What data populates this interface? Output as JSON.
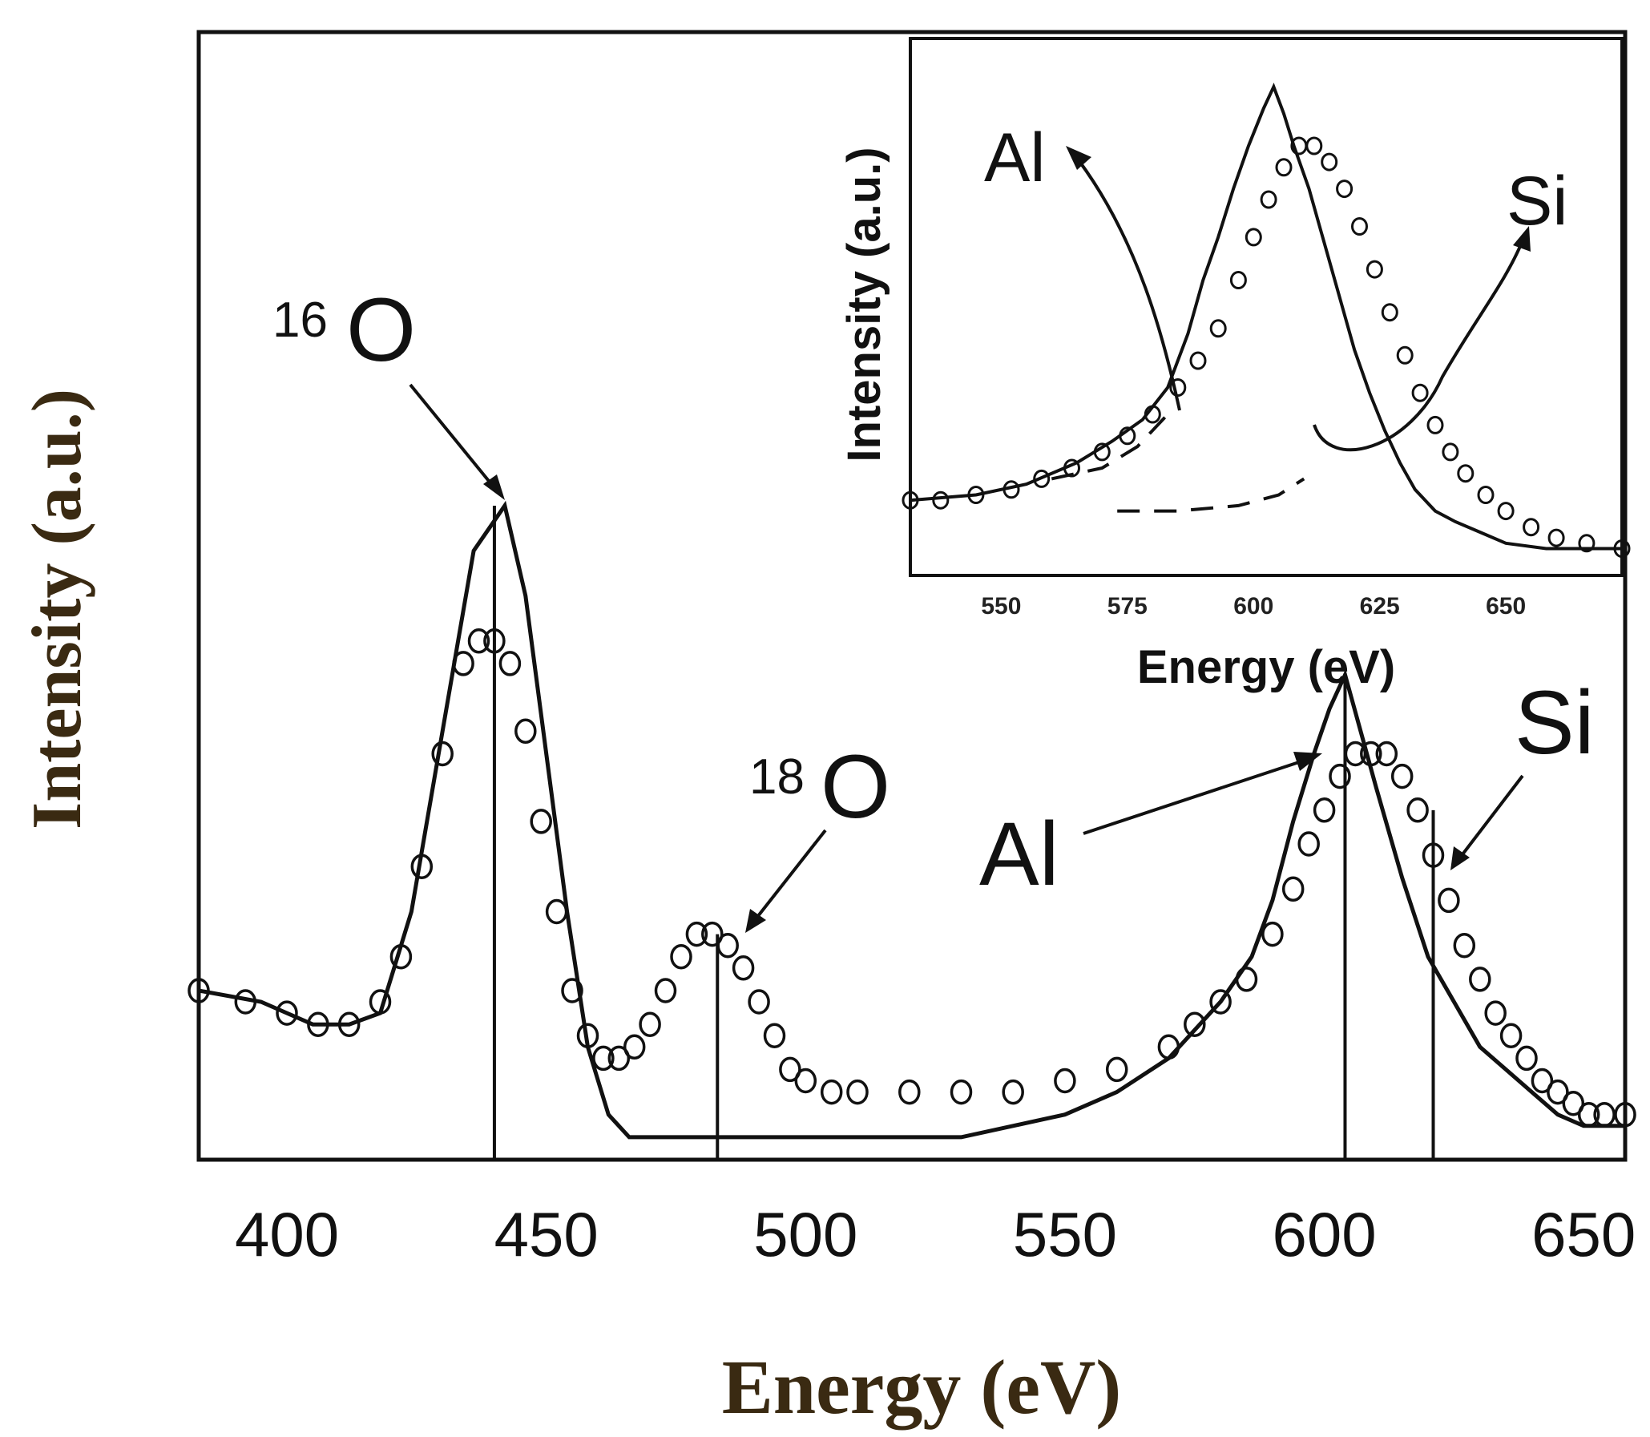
{
  "chart_data": [
    {
      "type": "line",
      "xlabel": "Energy (eV)",
      "ylabel": "Intensity (a.u.)",
      "xlim": [
        383,
        658
      ],
      "ylim": [
        0,
        1
      ],
      "x_ticks": [
        400,
        450,
        500,
        550,
        600,
        650
      ],
      "x_tick_labels": [
        "400",
        "450",
        "500",
        "550",
        "600",
        "650"
      ],
      "y_ticks_shown": false,
      "series": [
        {
          "name": "solid line",
          "style": "line",
          "x": [
            383,
            395,
            405,
            412,
            418,
            424,
            430,
            436,
            439,
            442,
            446,
            450,
            454,
            458,
            462,
            466,
            470,
            480,
            490,
            500,
            510,
            520,
            530,
            540,
            550,
            560,
            570,
            580,
            586,
            590,
            594,
            598,
            601,
            604,
            607,
            610,
            615,
            620,
            625,
            630,
            635,
            640,
            645,
            650,
            655,
            658
          ],
          "values": [
            0.15,
            0.14,
            0.12,
            0.12,
            0.13,
            0.22,
            0.38,
            0.54,
            0.56,
            0.58,
            0.5,
            0.36,
            0.22,
            0.1,
            0.04,
            0.02,
            0.02,
            0.02,
            0.02,
            0.02,
            0.02,
            0.02,
            0.02,
            0.03,
            0.04,
            0.06,
            0.09,
            0.14,
            0.18,
            0.23,
            0.3,
            0.36,
            0.4,
            0.43,
            0.38,
            0.33,
            0.25,
            0.18,
            0.14,
            0.1,
            0.08,
            0.06,
            0.04,
            0.03,
            0.03,
            0.03
          ]
        },
        {
          "name": "open circles",
          "style": "markers",
          "x": [
            383,
            392,
            400,
            406,
            412,
            418,
            422,
            426,
            430,
            434,
            437,
            440,
            443,
            446,
            449,
            452,
            455,
            458,
            461,
            464,
            467,
            470,
            473,
            476,
            479,
            482,
            485,
            488,
            491,
            494,
            497,
            500,
            505,
            510,
            520,
            530,
            540,
            550,
            560,
            570,
            575,
            580,
            585,
            590,
            594,
            597,
            600,
            603,
            606,
            609,
            612,
            615,
            618,
            621,
            624,
            627,
            630,
            633,
            636,
            639,
            642,
            645,
            648,
            651,
            654,
            658
          ],
          "values": [
            0.15,
            0.14,
            0.13,
            0.12,
            0.12,
            0.14,
            0.18,
            0.26,
            0.36,
            0.44,
            0.46,
            0.46,
            0.44,
            0.38,
            0.3,
            0.22,
            0.15,
            0.11,
            0.09,
            0.09,
            0.1,
            0.12,
            0.15,
            0.18,
            0.2,
            0.2,
            0.19,
            0.17,
            0.14,
            0.11,
            0.08,
            0.07,
            0.06,
            0.06,
            0.06,
            0.06,
            0.06,
            0.07,
            0.08,
            0.1,
            0.12,
            0.14,
            0.16,
            0.2,
            0.24,
            0.28,
            0.31,
            0.34,
            0.36,
            0.36,
            0.36,
            0.34,
            0.31,
            0.27,
            0.23,
            0.19,
            0.16,
            0.13,
            0.11,
            0.09,
            0.07,
            0.06,
            0.05,
            0.04,
            0.04,
            0.04
          ]
        }
      ],
      "markers": [
        {
          "label_mass": "16",
          "label_element": "O",
          "x": 440
        },
        {
          "label_mass": "18",
          "label_element": "O",
          "x": 483
        },
        {
          "label_mass": "",
          "label_element": "Al",
          "x": 604
        },
        {
          "label_mass": "",
          "label_element": "Si",
          "x": 621
        }
      ]
    },
    {
      "type": "line",
      "title": "inset",
      "xlabel": "Energy (eV)",
      "ylabel": "Intensity (a.u.)",
      "xlim": [
        532,
        673
      ],
      "ylim": [
        0,
        1
      ],
      "x_ticks": [
        550,
        575,
        600,
        625,
        650
      ],
      "x_tick_labels": [
        "550",
        "575",
        "600",
        "625",
        "650"
      ],
      "series": [
        {
          "name": "solid line",
          "style": "line",
          "x": [
            532,
            545,
            555,
            565,
            572,
            578,
            583,
            587,
            590,
            593,
            596,
            599,
            602,
            604,
            606,
            608,
            611,
            614,
            617,
            620,
            623,
            626,
            629,
            632,
            636,
            640,
            645,
            650,
            658,
            665,
            673
          ],
          "values": [
            0.14,
            0.15,
            0.17,
            0.21,
            0.25,
            0.29,
            0.35,
            0.45,
            0.55,
            0.63,
            0.72,
            0.8,
            0.87,
            0.91,
            0.86,
            0.8,
            0.72,
            0.62,
            0.52,
            0.42,
            0.34,
            0.27,
            0.21,
            0.16,
            0.12,
            0.1,
            0.08,
            0.06,
            0.05,
            0.05,
            0.05
          ]
        },
        {
          "name": "open circles",
          "style": "markers",
          "x": [
            532,
            538,
            545,
            552,
            558,
            564,
            570,
            575,
            580,
            585,
            589,
            593,
            597,
            600,
            603,
            606,
            609,
            612,
            615,
            618,
            621,
            624,
            627,
            630,
            633,
            636,
            639,
            642,
            646,
            650,
            655,
            660,
            666,
            673
          ],
          "values": [
            0.14,
            0.14,
            0.15,
            0.16,
            0.18,
            0.2,
            0.23,
            0.26,
            0.3,
            0.35,
            0.4,
            0.46,
            0.55,
            0.63,
            0.7,
            0.76,
            0.8,
            0.8,
            0.77,
            0.72,
            0.65,
            0.57,
            0.49,
            0.41,
            0.34,
            0.28,
            0.23,
            0.19,
            0.15,
            0.12,
            0.09,
            0.07,
            0.06,
            0.05
          ]
        },
        {
          "name": "Al component (dashed)",
          "style": "dashed",
          "x": [
            560,
            570,
            577,
            583
          ],
          "values": [
            0.18,
            0.2,
            0.24,
            0.3
          ]
        },
        {
          "name": "baseline component (dashed)",
          "style": "dashed",
          "x": [
            573,
            585,
            597,
            605,
            610
          ],
          "values": [
            0.12,
            0.12,
            0.13,
            0.15,
            0.18
          ]
        }
      ],
      "annotations": [
        {
          "text": "Al",
          "arrow_to_x": 585
        },
        {
          "text": "Si",
          "arrow_to_x": 618
        }
      ]
    }
  ]
}
